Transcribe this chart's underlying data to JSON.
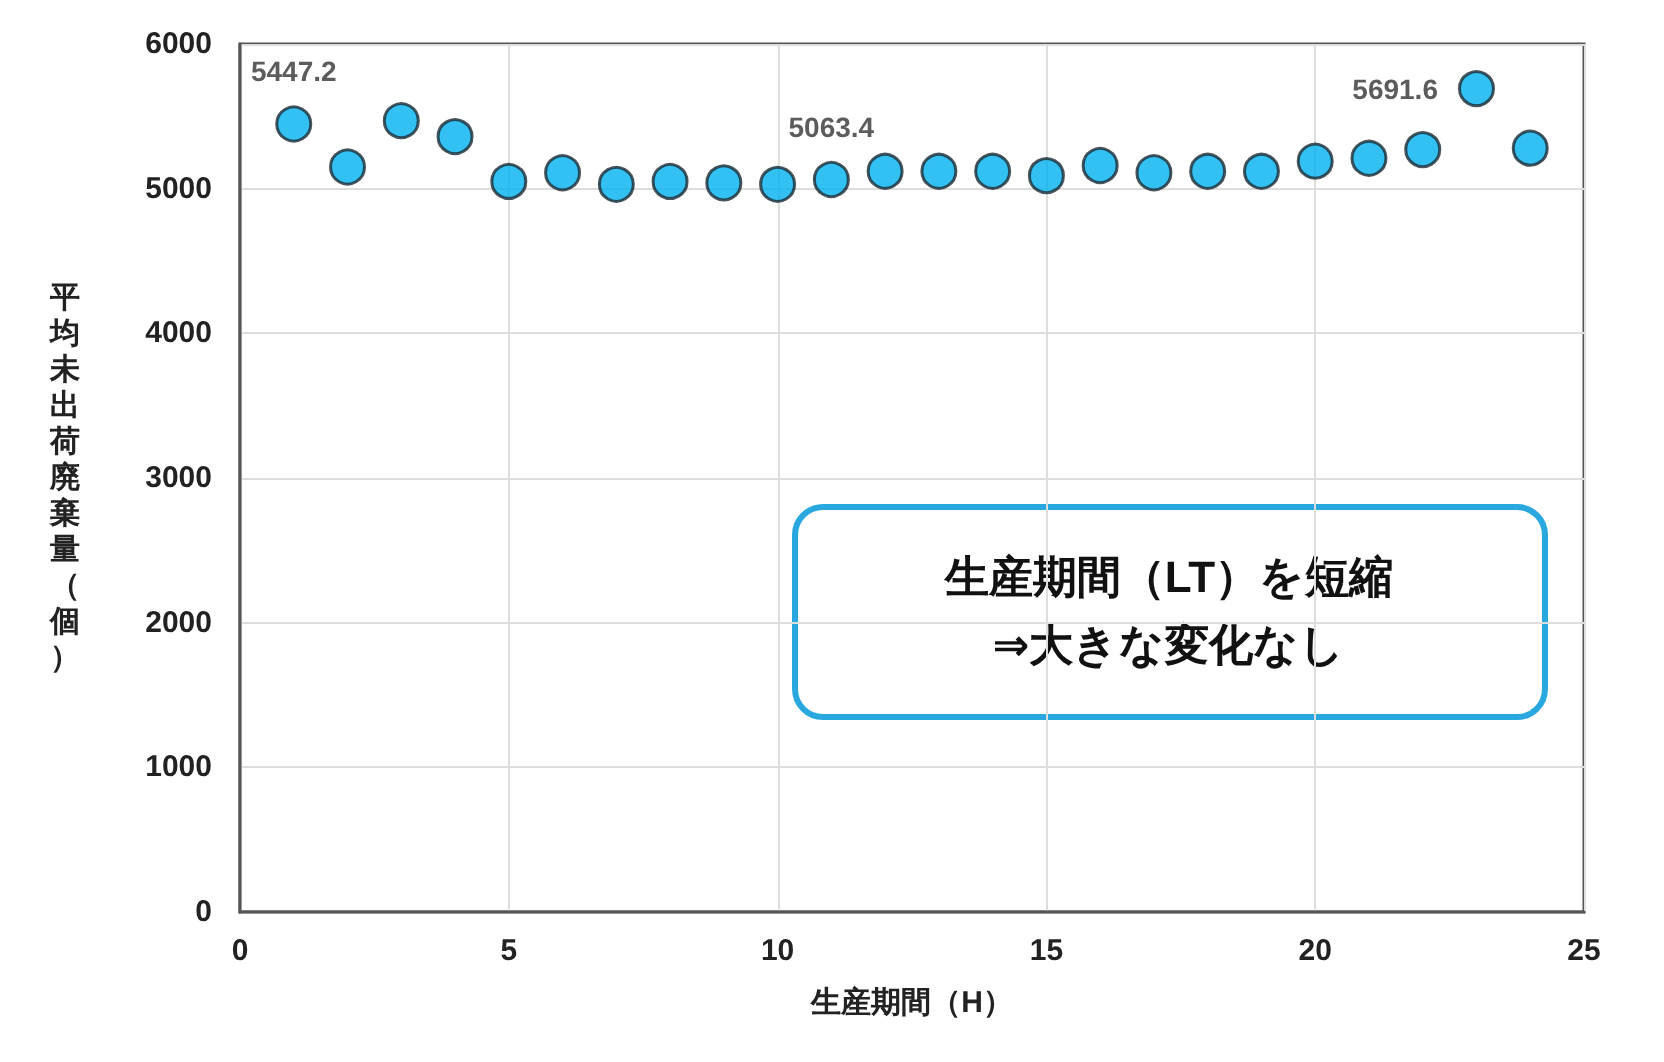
{
  "chart_data": {
    "type": "scatter",
    "xlabel": "生産期間（H）",
    "ylabel": "平均未出荷廃棄量（個）",
    "x": [
      1,
      2,
      3,
      4,
      5,
      6,
      7,
      8,
      9,
      10,
      11,
      12,
      13,
      14,
      15,
      16,
      17,
      18,
      19,
      20,
      21,
      22,
      23,
      24
    ],
    "series": [
      {
        "color": "#00b0f0",
        "values": [
          5447.2,
          5150,
          5470,
          5360,
          5050,
          5110,
          5030,
          5050,
          5040,
          5030,
          5063.4,
          5120,
          5120,
          5120,
          5090,
          5160,
          5110,
          5120,
          5120,
          5190,
          5210,
          5270,
          5691.6,
          5280
        ],
        "value_labels": [
          "5447.2",
          null,
          null,
          null,
          null,
          null,
          null,
          null,
          null,
          null,
          "5063.4",
          null,
          null,
          null,
          null,
          null,
          null,
          null,
          null,
          null,
          null,
          null,
          "5691.6",
          null
        ]
      }
    ],
    "xlim": [
      0,
      25
    ],
    "xticks": [
      0,
      5,
      10,
      15,
      20,
      25
    ],
    "ylim": [
      0,
      6000
    ],
    "yticks": [
      0,
      1000,
      2000,
      3000,
      4000,
      5000,
      6000
    ],
    "grid": true,
    "marker": "circle",
    "annotations": [
      "生産期間（LT）を短縮\n⇒大きな変化なし"
    ]
  }
}
